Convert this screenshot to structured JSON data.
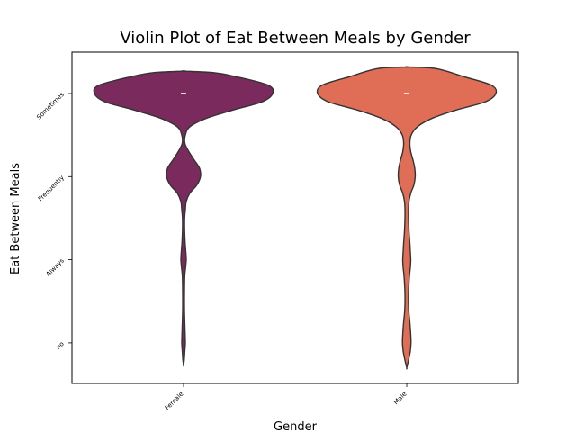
{
  "chart_data": {
    "type": "violin",
    "title": "Violin Plot of Eat Between Meals by Gender",
    "xlabel": "Gender",
    "ylabel": "Eat Between Meals",
    "categories": [
      "Female",
      "Male"
    ],
    "y_categories": [
      "Sometimes",
      "Frequently",
      "Always",
      "no"
    ],
    "colors": {
      "Female": "#7b2a5e",
      "Male": "#e06d56"
    },
    "series": [
      {
        "name": "Female",
        "median": "Sometimes",
        "density_profile": [
          {
            "level": -0.27,
            "width": 0.0
          },
          {
            "level": -0.25,
            "width": 0.35
          },
          {
            "level": -0.2,
            "width": 0.6
          },
          {
            "level": -0.1,
            "width": 0.95
          },
          {
            "level": 0.0,
            "width": 1.0
          },
          {
            "level": 0.1,
            "width": 0.88
          },
          {
            "level": 0.2,
            "width": 0.55
          },
          {
            "level": 0.3,
            "width": 0.25
          },
          {
            "level": 0.4,
            "width": 0.07
          },
          {
            "level": 0.5,
            "width": 0.02
          },
          {
            "level": 0.6,
            "width": 0.015
          },
          {
            "level": 0.7,
            "width": 0.06
          },
          {
            "level": 0.8,
            "width": 0.12
          },
          {
            "level": 0.9,
            "width": 0.18
          },
          {
            "level": 1.0,
            "width": 0.19
          },
          {
            "level": 1.1,
            "width": 0.15
          },
          {
            "level": 1.2,
            "width": 0.07
          },
          {
            "level": 1.3,
            "width": 0.03
          },
          {
            "level": 1.4,
            "width": 0.02
          },
          {
            "level": 1.5,
            "width": 0.012
          },
          {
            "level": 1.65,
            "width": 0.012
          },
          {
            "level": 1.8,
            "width": 0.018
          },
          {
            "level": 1.9,
            "width": 0.025
          },
          {
            "level": 2.0,
            "width": 0.03
          },
          {
            "level": 2.1,
            "width": 0.022
          },
          {
            "level": 2.2,
            "width": 0.013
          },
          {
            "level": 2.4,
            "width": 0.01
          },
          {
            "level": 2.6,
            "width": 0.01
          },
          {
            "level": 2.8,
            "width": 0.015
          },
          {
            "level": 3.0,
            "width": 0.02
          },
          {
            "level": 3.1,
            "width": 0.014
          },
          {
            "level": 3.2,
            "width": 0.008
          },
          {
            "level": 3.27,
            "width": 0.0
          }
        ]
      },
      {
        "name": "Male",
        "median": "Sometimes",
        "density_profile": [
          {
            "level": -0.32,
            "width": 0.0
          },
          {
            "level": -0.3,
            "width": 0.33
          },
          {
            "level": -0.2,
            "width": 0.65
          },
          {
            "level": -0.1,
            "width": 0.95
          },
          {
            "level": 0.0,
            "width": 1.0
          },
          {
            "level": 0.1,
            "width": 0.88
          },
          {
            "level": 0.2,
            "width": 0.55
          },
          {
            "level": 0.3,
            "width": 0.28
          },
          {
            "level": 0.4,
            "width": 0.12
          },
          {
            "level": 0.5,
            "width": 0.05
          },
          {
            "level": 0.6,
            "width": 0.035
          },
          {
            "level": 0.7,
            "width": 0.045
          },
          {
            "level": 0.8,
            "width": 0.07
          },
          {
            "level": 0.9,
            "width": 0.09
          },
          {
            "level": 1.0,
            "width": 0.095
          },
          {
            "level": 1.1,
            "width": 0.08
          },
          {
            "level": 1.2,
            "width": 0.045
          },
          {
            "level": 1.3,
            "width": 0.025
          },
          {
            "level": 1.4,
            "width": 0.02
          },
          {
            "level": 1.5,
            "width": 0.02
          },
          {
            "level": 1.65,
            "width": 0.025
          },
          {
            "level": 1.8,
            "width": 0.035
          },
          {
            "level": 1.9,
            "width": 0.04
          },
          {
            "level": 2.0,
            "width": 0.045
          },
          {
            "level": 2.1,
            "width": 0.04
          },
          {
            "level": 2.2,
            "width": 0.03
          },
          {
            "level": 2.4,
            "width": 0.02
          },
          {
            "level": 2.6,
            "width": 0.022
          },
          {
            "level": 2.75,
            "width": 0.035
          },
          {
            "level": 2.9,
            "width": 0.045
          },
          {
            "level": 3.0,
            "width": 0.048
          },
          {
            "level": 3.1,
            "width": 0.04
          },
          {
            "level": 3.2,
            "width": 0.022
          },
          {
            "level": 3.3,
            "width": 0.0
          }
        ]
      }
    ],
    "ylim": [
      "Sometimes",
      "no"
    ],
    "grid": false,
    "legend": "none"
  }
}
